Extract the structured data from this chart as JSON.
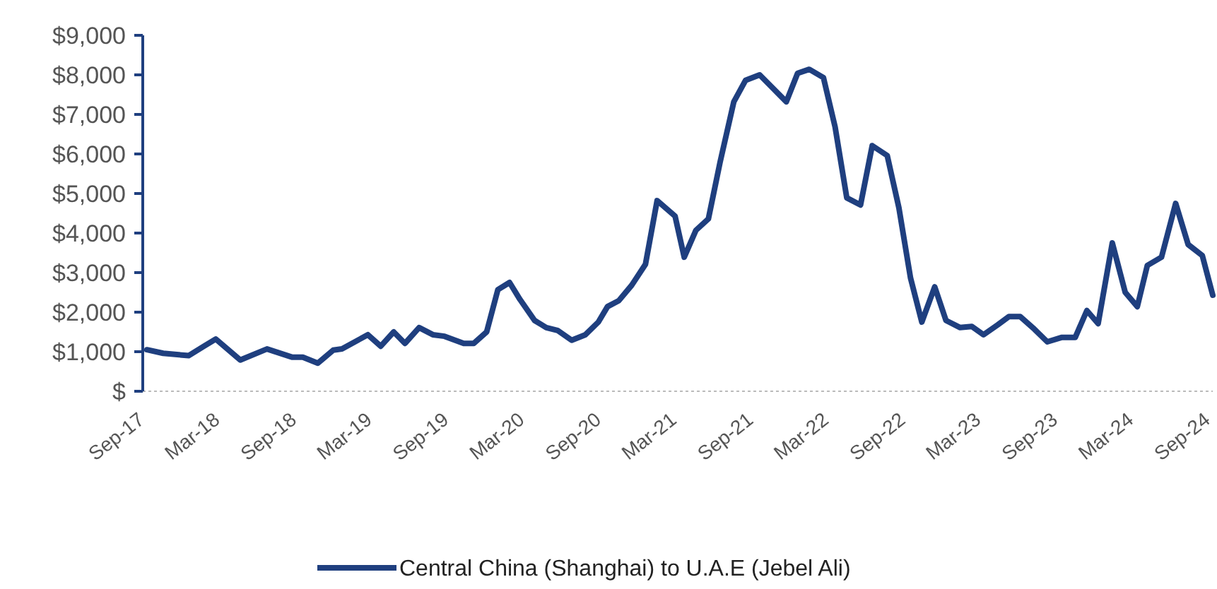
{
  "chart_data": {
    "type": "line",
    "x": [
      "2017-09-01",
      "2017-10-10",
      "2017-12-10",
      "2018-01-16",
      "2018-02-13",
      "2018-04-13",
      "2018-06-16",
      "2018-08-16",
      "2018-09-10",
      "2018-10-16",
      "2018-11-22",
      "2018-12-13",
      "2019-02-13",
      "2019-03-16",
      "2019-04-16",
      "2019-05-13",
      "2019-06-16",
      "2019-07-19",
      "2019-08-16",
      "2019-10-01",
      "2019-10-25",
      "2019-11-25",
      "2019-12-22",
      "2020-01-19",
      "2020-02-13",
      "2020-03-19",
      "2020-04-16",
      "2020-05-13",
      "2020-06-16",
      "2020-07-19",
      "2020-08-19",
      "2020-09-10",
      "2020-10-07",
      "2020-11-07",
      "2020-12-10",
      "2021-01-07",
      "2021-02-19",
      "2021-03-13",
      "2021-04-10",
      "2021-05-10",
      "2021-06-07",
      "2021-07-10",
      "2021-08-07",
      "2021-09-10",
      "2021-11-13",
      "2021-12-10",
      "2022-01-07",
      "2022-02-10",
      "2022-03-10",
      "2022-04-07",
      "2022-05-10",
      "2022-06-07",
      "2022-07-13",
      "2022-08-10",
      "2022-09-07",
      "2022-10-04",
      "2022-11-04",
      "2022-12-01",
      "2023-01-04",
      "2023-02-01",
      "2023-03-01",
      "2023-04-04",
      "2023-05-01",
      "2023-05-28",
      "2023-07-01",
      "2023-08-01",
      "2023-09-04",
      "2023-10-07",
      "2023-11-04",
      "2023-12-01",
      "2024-01-04",
      "2024-02-04",
      "2024-03-04",
      "2024-03-28",
      "2024-05-01",
      "2024-06-04",
      "2024-07-04",
      "2024-08-07",
      "2024-09-01"
    ],
    "series": [
      {
        "name": "Central China (Shanghai) to U.A.E (Jebel Ali)",
        "color": "#1f3f7f",
        "values": [
          1050,
          960,
          900,
          1140,
          1320,
          790,
          1070,
          860,
          860,
          710,
          1040,
          1070,
          1430,
          1140,
          1500,
          1210,
          1610,
          1430,
          1390,
          1210,
          1210,
          1500,
          2570,
          2750,
          2320,
          1790,
          1610,
          1540,
          1290,
          1430,
          1750,
          2140,
          2290,
          2680,
          3210,
          4820,
          4430,
          3390,
          4070,
          4360,
          5790,
          7320,
          7860,
          8000,
          7320,
          8040,
          8140,
          7930,
          6680,
          4890,
          4710,
          6210,
          5960,
          4640,
          2860,
          1750,
          2640,
          1790,
          1610,
          1640,
          1430,
          1680,
          1890,
          1890,
          1570,
          1250,
          1360,
          1360,
          2040,
          1710,
          3750,
          2500,
          2140,
          3180,
          3390,
          4750,
          3710,
          3430,
          2430
        ]
      }
    ],
    "xlim": [
      "2017-08-22",
      "2024-09"
    ],
    "xticks": [
      {
        "value": "2017-09",
        "label": "Sep-17"
      },
      {
        "value": "2018-03",
        "label": "Mar-18"
      },
      {
        "value": "2018-09",
        "label": "Sep-18"
      },
      {
        "value": "2019-03",
        "label": "Mar-19"
      },
      {
        "value": "2019-09",
        "label": "Sep-19"
      },
      {
        "value": "2020-03",
        "label": "Mar-20"
      },
      {
        "value": "2020-09",
        "label": "Sep-20"
      },
      {
        "value": "2021-03",
        "label": "Mar-21"
      },
      {
        "value": "2021-09",
        "label": "Sep-21"
      },
      {
        "value": "2022-03",
        "label": "Mar-22"
      },
      {
        "value": "2022-09",
        "label": "Sep-22"
      },
      {
        "value": "2023-03",
        "label": "Mar-23"
      },
      {
        "value": "2023-09",
        "label": "Sep-23"
      },
      {
        "value": "2024-03",
        "label": "Mar-24"
      },
      {
        "value": "2024-09",
        "label": "Sep-24"
      }
    ],
    "ylim": [
      0,
      9000
    ],
    "yticks": [
      {
        "value": 0,
        "label": "$"
      },
      {
        "value": 1000,
        "label": "$1,000"
      },
      {
        "value": 2000,
        "label": "$2,000"
      },
      {
        "value": 3000,
        "label": "$3,000"
      },
      {
        "value": 4000,
        "label": "$4,000"
      },
      {
        "value": 5000,
        "label": "$5,000"
      },
      {
        "value": 6000,
        "label": "$6,000"
      },
      {
        "value": 7000,
        "label": "$7,000"
      },
      {
        "value": 8000,
        "label": "$8,000"
      },
      {
        "value": 9000,
        "label": "$9,000"
      }
    ],
    "legend": "bottom"
  }
}
